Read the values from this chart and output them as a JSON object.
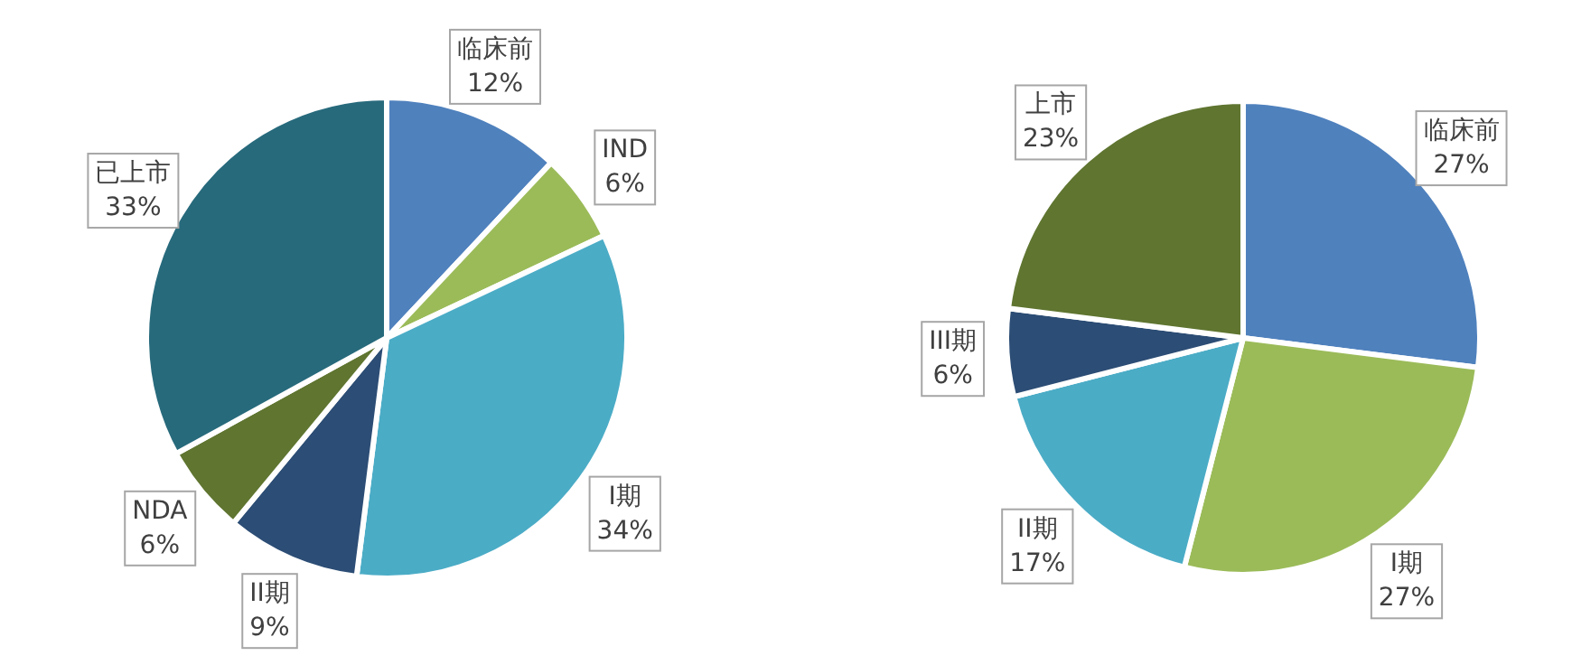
{
  "chart_data": [
    {
      "type": "pie",
      "categories": [
        "临床前",
        "IND",
        "I期",
        "II期",
        "NDA",
        "已上市"
      ],
      "values": [
        12,
        6,
        34,
        9,
        6,
        33
      ],
      "colors": [
        "#4f81bd",
        "#9bbb59",
        "#4bacc6",
        "#2c4d75",
        "#5f7530",
        "#276a7c"
      ],
      "value_labels": [
        "12%",
        "6%",
        "34%",
        "9%",
        "6%",
        "33%"
      ]
    },
    {
      "type": "pie",
      "categories": [
        "临床前",
        "I期",
        "II期",
        "III期",
        "上市"
      ],
      "values": [
        27,
        27,
        17,
        6,
        23
      ],
      "colors": [
        "#4f81bd",
        "#9bbb59",
        "#4bacc6",
        "#2c4d75",
        "#5f7530"
      ],
      "value_labels": [
        "27%",
        "27%",
        "17%",
        "6%",
        "23%"
      ]
    }
  ]
}
